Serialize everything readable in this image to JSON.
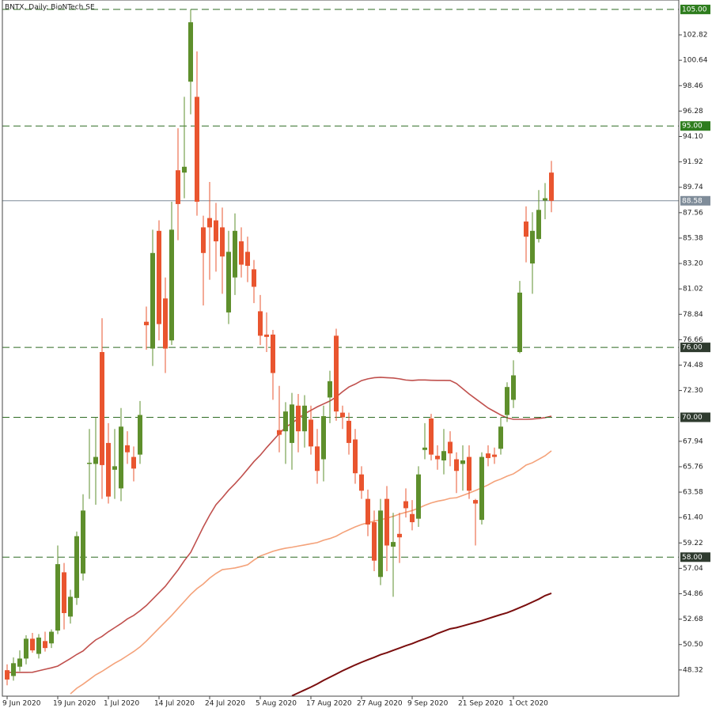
{
  "chart_data": {
    "type": "candlestick",
    "title": "BNTX, Daily:  BioNTech SE",
    "categories": [
      "9 Jun 2020",
      null,
      null,
      null,
      null,
      null,
      null,
      null,
      "19 Jun 2020",
      null,
      null,
      null,
      null,
      null,
      null,
      null,
      "1 Jul 2020",
      null,
      null,
      null,
      null,
      null,
      null,
      null,
      "14 Jul 2020",
      null,
      null,
      null,
      null,
      null,
      null,
      null,
      "24 Jul 2020",
      null,
      null,
      null,
      null,
      null,
      null,
      null,
      "5 Aug 2020",
      null,
      null,
      null,
      null,
      null,
      null,
      null,
      "17 Aug 2020",
      null,
      null,
      null,
      null,
      null,
      null,
      null,
      "27 Aug 2020",
      null,
      null,
      null,
      null,
      null,
      null,
      null,
      "9 Sep 2020",
      null,
      null,
      null,
      null,
      null,
      null,
      null,
      "21 Sep 2020",
      null,
      null,
      null,
      null,
      null,
      null,
      null,
      "1 Oct 2020",
      null,
      null,
      null,
      null,
      null,
      null
    ],
    "open": [
      48.3,
      47.8,
      48.6,
      49.3,
      51.0,
      49.7,
      50.8,
      50.6,
      51.7,
      56.7,
      52.9,
      54.5,
      56.6,
      66.0,
      66.0,
      75.6,
      67.8,
      65.5,
      63.9,
      67.6,
      66.6,
      66.8,
      78.2,
      75.9,
      86.0,
      80.2,
      76.6,
      91.2,
      91.0,
      98.8,
      97.5,
      86.3,
      87.1,
      86.9,
      86.3,
      79.0,
      82.0,
      85.1,
      84.2,
      82.7,
      79.1,
      77.1,
      77.1,
      68.9,
      68.8,
      67.8,
      71.0,
      68.8,
      69.8,
      67.5,
      66.4,
      71.7,
      77.0,
      70.4,
      69.7,
      68.1,
      65.1,
      63.0,
      61.0,
      56.3,
      63.0,
      58.9,
      60.0,
      62.8,
      61.7,
      61.3,
      67.2,
      69.9,
      66.7,
      66.3,
      67.9,
      66.4,
      66.0,
      66.6,
      62.9,
      61.2,
      66.9,
      66.8,
      67.3,
      70.2,
      71.5,
      75.6,
      86.8,
      83.2,
      85.3,
      88.6,
      91.0
    ],
    "high": [
      48.8,
      49.4,
      50.0,
      51.3,
      51.5,
      51.4,
      51.6,
      51.8,
      59.0,
      57.5,
      55.2,
      60.2,
      63.4,
      69.0,
      70.0,
      78.5,
      69.5,
      69.0,
      70.8,
      68.8,
      67.5,
      71.4,
      79.5,
      86.1,
      86.9,
      82.0,
      88.5,
      94.8,
      97.5,
      105.0,
      101.4,
      87.3,
      90.2,
      88.4,
      88.0,
      86.0,
      87.5,
      86.3,
      85.5,
      83.5,
      80.5,
      79.0,
      77.5,
      72.7,
      71.3,
      72.1,
      72.0,
      71.9,
      71.0,
      69.0,
      71.0,
      74.0,
      77.6,
      71.0,
      70.4,
      69.0,
      65.8,
      63.8,
      62.0,
      63.0,
      64.1,
      61.8,
      61.8,
      63.9,
      62.9,
      65.8,
      69.5,
      70.3,
      67.6,
      69.0,
      68.8,
      67.0,
      67.6,
      67.6,
      63.0,
      67.0,
      67.6,
      67.4,
      70.0,
      73.0,
      74.9,
      81.7,
      88.1,
      87.6,
      89.5,
      90.1,
      92.0
    ],
    "low": [
      47.0,
      47.4,
      48.2,
      48.8,
      49.8,
      49.3,
      49.9,
      50.2,
      51.4,
      51.8,
      52.3,
      53.9,
      56.0,
      63.0,
      62.5,
      63.0,
      62.6,
      63.0,
      62.8,
      66.0,
      64.5,
      66.0,
      75.8,
      74.4,
      76.6,
      73.8,
      76.2,
      85.2,
      88.8,
      96.0,
      87.3,
      79.6,
      81.8,
      82.5,
      80.6,
      78.0,
      80.5,
      82.0,
      81.6,
      79.8,
      76.2,
      75.6,
      71.5,
      67.0,
      66.0,
      65.5,
      67.0,
      67.4,
      66.8,
      64.3,
      64.5,
      69.5,
      69.7,
      69.0,
      66.8,
      64.3,
      63.0,
      59.8,
      56.8,
      55.6,
      56.8,
      54.6,
      57.5,
      61.4,
      60.3,
      60.6,
      66.4,
      66.3,
      65.5,
      65.1,
      65.8,
      63.5,
      63.7,
      63.0,
      59.0,
      60.8,
      65.8,
      66.0,
      66.8,
      69.6,
      70.8,
      75.5,
      83.3,
      80.6,
      85.0,
      87.0,
      87.6
    ],
    "close": [
      47.5,
      48.9,
      49.3,
      51.0,
      50.0,
      51.1,
      50.2,
      51.6,
      57.4,
      53.2,
      54.6,
      59.8,
      62.0,
      66.1,
      66.6,
      65.9,
      63.2,
      65.8,
      69.2,
      67.0,
      65.6,
      70.2,
      77.9,
      84.1,
      78.0,
      75.9,
      86.1,
      88.3,
      91.5,
      103.9,
      88.5,
      84.1,
      86.3,
      85.1,
      83.8,
      84.2,
      86.0,
      83.1,
      83.0,
      81.2,
      77.0,
      76.9,
      73.8,
      68.5,
      70.5,
      71.1,
      68.8,
      71.0,
      67.5,
      65.4,
      70.1,
      73.1,
      70.5,
      70.0,
      67.8,
      65.2,
      63.7,
      60.8,
      57.7,
      62.0,
      59.0,
      59.3,
      59.7,
      62.2,
      61.0,
      65.1,
      67.4,
      66.8,
      66.4,
      67.1,
      66.9,
      65.4,
      66.3,
      63.7,
      62.6,
      66.6,
      66.5,
      66.6,
      69.2,
      72.6,
      73.6,
      80.7,
      85.5,
      86.0,
      87.8,
      88.8,
      88.58
    ],
    "up_color": "#5e8f2c",
    "down_color": "#e9552f",
    "moving_averages": [
      {
        "color": "#c0504d",
        "values": [
          48.11,
          48.11,
          48.11,
          48.11,
          48.12,
          48.25,
          48.38,
          48.5,
          48.65,
          48.98,
          49.3,
          49.65,
          49.95,
          50.45,
          50.9,
          51.2,
          51.6,
          51.95,
          52.3,
          52.7,
          53.0,
          53.4,
          53.85,
          54.4,
          54.95,
          55.5,
          56.2,
          56.9,
          57.7,
          58.4,
          59.5,
          60.6,
          61.6,
          62.5,
          63.1,
          63.75,
          64.3,
          64.9,
          65.55,
          66.2,
          66.75,
          67.4,
          68.0,
          68.6,
          69.15,
          69.5,
          69.9,
          70.3,
          70.6,
          70.9,
          71.15,
          71.4,
          71.75,
          72.2,
          72.6,
          72.85,
          73.15,
          73.3,
          73.4,
          73.43,
          73.4,
          73.37,
          73.3,
          73.2,
          73.16,
          73.2,
          73.2,
          73.18,
          73.17,
          73.17,
          73.16,
          72.9,
          72.45,
          72.0,
          71.6,
          71.2,
          70.8,
          70.5,
          70.2,
          69.95,
          69.83,
          69.83,
          69.83,
          69.85,
          69.9,
          69.97,
          70.1
        ]
      },
      {
        "color": "#f4a27a",
        "values": [
          null,
          null,
          null,
          null,
          null,
          null,
          null,
          null,
          null,
          null,
          46.27,
          46.75,
          47.1,
          47.5,
          47.9,
          48.2,
          48.55,
          48.9,
          49.2,
          49.55,
          49.9,
          50.3,
          50.8,
          51.35,
          51.9,
          52.45,
          53.0,
          53.6,
          54.2,
          54.8,
          55.3,
          55.7,
          56.2,
          56.6,
          56.93,
          57.0,
          57.07,
          57.2,
          57.35,
          57.75,
          58.1,
          58.3,
          58.5,
          58.65,
          58.77,
          58.85,
          58.95,
          59.05,
          59.15,
          59.25,
          59.45,
          59.6,
          59.8,
          60.1,
          60.35,
          60.6,
          60.8,
          60.95,
          61.1,
          61.2,
          61.35,
          61.5,
          61.7,
          61.85,
          62.0,
          62.2,
          62.45,
          62.65,
          62.8,
          62.9,
          63.05,
          63.1,
          63.3,
          63.5,
          63.72,
          63.95,
          64.2,
          64.5,
          64.7,
          64.95,
          65.15,
          65.5,
          65.9,
          66.1,
          66.4,
          66.7,
          67.12
        ]
      },
      {
        "color": "#7a0e0e",
        "values": [
          null,
          null,
          null,
          null,
          null,
          null,
          null,
          null,
          null,
          null,
          null,
          null,
          null,
          null,
          null,
          null,
          null,
          null,
          null,
          null,
          null,
          null,
          null,
          null,
          null,
          null,
          null,
          null,
          null,
          null,
          null,
          null,
          null,
          null,
          null,
          null,
          null,
          null,
          null,
          null,
          null,
          null,
          null,
          null,
          null,
          46.1,
          46.35,
          46.6,
          46.85,
          47.12,
          47.43,
          47.7,
          47.97,
          48.25,
          48.5,
          48.75,
          48.98,
          49.2,
          49.4,
          49.63,
          49.8,
          50.0,
          50.2,
          50.4,
          50.58,
          50.8,
          51.0,
          51.2,
          51.45,
          51.65,
          51.85,
          51.95,
          52.1,
          52.25,
          52.4,
          52.55,
          52.73,
          52.9,
          53.07,
          53.23,
          53.44,
          53.67,
          53.9,
          54.15,
          54.4,
          54.7,
          54.9
        ]
      }
    ],
    "levels": [
      {
        "value": 105,
        "label": "105.00",
        "color": "#2e7d1e"
      },
      {
        "value": 95,
        "label": "95.00",
        "color": "#2e7d1e"
      },
      {
        "value": 76,
        "label": "76.00",
        "color": "#2f3b2f"
      },
      {
        "value": 70,
        "label": "70.00",
        "color": "#2f3b2f"
      },
      {
        "value": 58,
        "label": "58.00",
        "color": "#2f3b2f"
      }
    ],
    "price_line": {
      "value": 88.58,
      "label": "88.58",
      "color": "#7f8c99"
    },
    "ylim": [
      46.07,
      105.81
    ],
    "yticks": [
      48.32,
      {
        "value": 50.5,
        "label": "50.50"
      },
      52.68,
      54.86,
      57.04,
      59.22,
      {
        "value": 61.4,
        "label": "61.40"
      },
      63.58,
      65.76,
      67.94,
      {
        "value": 72.3,
        "label": "72.30"
      },
      74.48,
      76.66,
      78.84,
      81.02,
      {
        "value": 83.2,
        "label": "83.20"
      },
      85.38,
      87.56,
      89.74,
      91.92,
      {
        "value": 94.1,
        "label": "94.10"
      },
      96.28,
      98.46,
      100.64,
      102.82
    ]
  }
}
